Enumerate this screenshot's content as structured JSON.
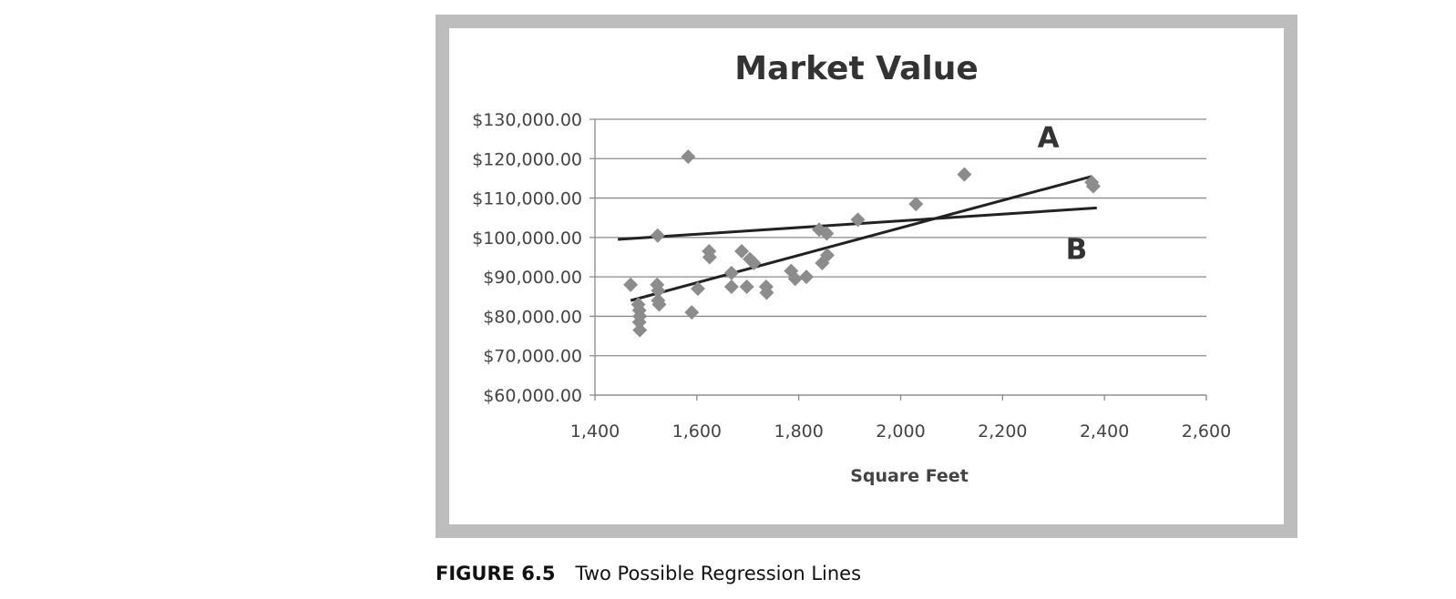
{
  "chart_data": {
    "type": "scatter",
    "title": "Market Value",
    "xlabel": "Square Feet",
    "ylabel": "",
    "xlim": [
      1400,
      2600
    ],
    "ylim": [
      60000,
      130000
    ],
    "x_ticks": [
      1400,
      1600,
      1800,
      2000,
      2200,
      2400,
      2600
    ],
    "x_tick_labels": [
      "1,400",
      "1,600",
      "1,800",
      "2,000",
      "2,200",
      "2,400",
      "2,600"
    ],
    "y_ticks": [
      60000,
      70000,
      80000,
      90000,
      100000,
      110000,
      120000,
      130000
    ],
    "y_tick_labels": [
      "$60,000.00",
      "$70,000.00",
      "$80,000.00",
      "$90,000.00",
      "$100,000.00",
      "$110,000.00",
      "$120,000.00",
      "$130,000.00"
    ],
    "grid": "horizontal",
    "marker_color": "#8c8c8c",
    "line_color": "#222222",
    "points": [
      {
        "x": 1470,
        "y": 88000
      },
      {
        "x": 1485,
        "y": 83000
      },
      {
        "x": 1487,
        "y": 81500
      },
      {
        "x": 1488,
        "y": 80000
      },
      {
        "x": 1487,
        "y": 78500
      },
      {
        "x": 1488,
        "y": 76500
      },
      {
        "x": 1523,
        "y": 100500
      },
      {
        "x": 1522,
        "y": 88000
      },
      {
        "x": 1524,
        "y": 86500
      },
      {
        "x": 1524,
        "y": 84000
      },
      {
        "x": 1526,
        "y": 83000
      },
      {
        "x": 1583,
        "y": 120500
      },
      {
        "x": 1590,
        "y": 81000
      },
      {
        "x": 1602,
        "y": 87000
      },
      {
        "x": 1624,
        "y": 96500
      },
      {
        "x": 1625,
        "y": 95000
      },
      {
        "x": 1668,
        "y": 91000
      },
      {
        "x": 1668,
        "y": 87500
      },
      {
        "x": 1688,
        "y": 96500
      },
      {
        "x": 1698,
        "y": 87500
      },
      {
        "x": 1704,
        "y": 94500
      },
      {
        "x": 1712,
        "y": 93500
      },
      {
        "x": 1736,
        "y": 87500
      },
      {
        "x": 1737,
        "y": 86000
      },
      {
        "x": 1785,
        "y": 91500
      },
      {
        "x": 1793,
        "y": 89500
      },
      {
        "x": 1815,
        "y": 90000
      },
      {
        "x": 1840,
        "y": 102000
      },
      {
        "x": 1855,
        "y": 101000
      },
      {
        "x": 1846,
        "y": 93500
      },
      {
        "x": 1856,
        "y": 95500
      },
      {
        "x": 1916,
        "y": 104500
      },
      {
        "x": 2030,
        "y": 108500
      },
      {
        "x": 2125,
        "y": 116000
      },
      {
        "x": 2375,
        "y": 114000
      },
      {
        "x": 2378,
        "y": 113000
      }
    ],
    "lines": [
      {
        "name": "A",
        "x": [
          1470,
          2375
        ],
        "y": [
          84000,
          115500
        ]
      },
      {
        "name": "B",
        "x": [
          1445,
          2385
        ],
        "y": [
          99500,
          107500
        ]
      }
    ],
    "annotations": [
      {
        "text": "A",
        "x": 2290,
        "y": 123000
      },
      {
        "text": "B",
        "x": 2345,
        "y": 94500
      }
    ]
  },
  "caption": {
    "label": "FIGURE 6.5",
    "text": "Two Possible Regression Lines"
  }
}
